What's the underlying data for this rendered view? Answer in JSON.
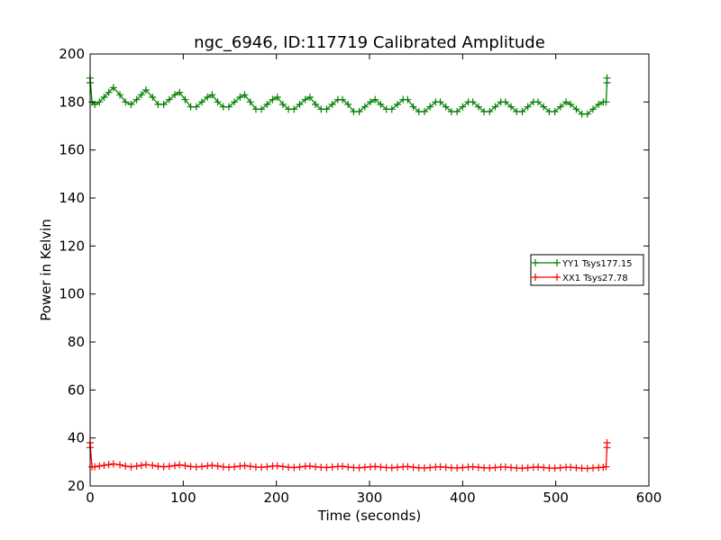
{
  "chart_data": {
    "type": "line",
    "title": "ngc_6946, ID:117719 Calibrated Amplitude",
    "xlabel": "Time (seconds)",
    "ylabel": "Power in Kelvin",
    "xlim": [
      0,
      600
    ],
    "ylim": [
      20,
      200
    ],
    "xticks": [
      0,
      100,
      200,
      300,
      400,
      500,
      600
    ],
    "yticks": [
      20,
      40,
      60,
      80,
      100,
      120,
      140,
      160,
      180,
      200
    ],
    "grid": false,
    "legend_position": "right",
    "marker": "plus",
    "series": [
      {
        "name": "YY1 Tsys177.15",
        "color": "#008000",
        "x": [
          0,
          0,
          2,
          5,
          10,
          15,
          20,
          25,
          32,
          38,
          44,
          50,
          55,
          60,
          67,
          73,
          79,
          85,
          91,
          96,
          102,
          108,
          114,
          120,
          126,
          131,
          137,
          143,
          149,
          155,
          161,
          166,
          172,
          178,
          184,
          190,
          196,
          201,
          207,
          213,
          219,
          225,
          231,
          236,
          242,
          248,
          254,
          260,
          266,
          271,
          277,
          283,
          289,
          295,
          301,
          306,
          312,
          318,
          324,
          330,
          336,
          341,
          347,
          353,
          359,
          365,
          371,
          376,
          382,
          388,
          394,
          400,
          406,
          411,
          417,
          423,
          429,
          435,
          441,
          446,
          452,
          458,
          464,
          470,
          476,
          481,
          487,
          493,
          499,
          505,
          511,
          516,
          522,
          528,
          534,
          540,
          546,
          551,
          554,
          555,
          555
        ],
        "y": [
          188,
          190,
          180,
          179,
          180,
          182,
          184,
          186,
          183,
          180,
          179,
          181,
          183,
          185,
          182,
          179,
          179,
          181,
          183,
          184,
          181,
          178,
          178,
          180,
          182,
          183,
          180,
          178,
          178,
          180,
          182,
          183,
          180,
          177,
          177,
          179,
          181,
          182,
          179,
          177,
          177,
          179,
          181,
          182,
          179,
          177,
          177,
          179,
          181,
          181,
          179,
          176,
          176,
          178,
          180,
          181,
          179,
          177,
          177,
          179,
          181,
          181,
          178,
          176,
          176,
          178,
          180,
          180,
          178,
          176,
          176,
          178,
          180,
          180,
          178,
          176,
          176,
          178,
          180,
          180,
          178,
          176,
          176,
          178,
          180,
          180,
          178,
          176,
          176,
          178,
          180,
          179,
          177,
          175,
          175,
          177,
          179,
          180,
          180,
          188,
          190
        ]
      },
      {
        "name": "XX1 Tsys27.78",
        "color": "#ff0000",
        "x": [
          0,
          0,
          2,
          5,
          10,
          15,
          20,
          25,
          32,
          38,
          44,
          50,
          55,
          60,
          67,
          73,
          79,
          85,
          91,
          96,
          102,
          108,
          114,
          120,
          126,
          131,
          137,
          143,
          149,
          155,
          161,
          166,
          172,
          178,
          184,
          190,
          196,
          201,
          207,
          213,
          219,
          225,
          231,
          236,
          242,
          248,
          254,
          260,
          266,
          271,
          277,
          283,
          289,
          295,
          301,
          306,
          312,
          318,
          324,
          330,
          336,
          341,
          347,
          353,
          359,
          365,
          371,
          376,
          382,
          388,
          394,
          400,
          406,
          411,
          417,
          423,
          429,
          435,
          441,
          446,
          452,
          458,
          464,
          470,
          476,
          481,
          487,
          493,
          499,
          505,
          511,
          516,
          522,
          528,
          534,
          540,
          546,
          551,
          554,
          555,
          555
        ],
        "y": [
          36,
          38,
          28,
          28,
          28.3,
          28.6,
          28.9,
          29.2,
          28.8,
          28.3,
          28,
          28.3,
          28.6,
          28.9,
          28.6,
          28.2,
          28,
          28.2,
          28.5,
          28.8,
          28.5,
          28.1,
          27.9,
          28.1,
          28.4,
          28.6,
          28.3,
          28,
          27.8,
          28,
          28.3,
          28.5,
          28.2,
          27.9,
          27.8,
          28,
          28.3,
          28.4,
          28.1,
          27.8,
          27.7,
          27.9,
          28.2,
          28.3,
          28,
          27.8,
          27.7,
          27.9,
          28.1,
          28.2,
          27.9,
          27.7,
          27.6,
          27.8,
          28,
          28.1,
          27.9,
          27.7,
          27.6,
          27.8,
          28,
          28.1,
          27.8,
          27.6,
          27.5,
          27.7,
          27.9,
          28,
          27.8,
          27.6,
          27.5,
          27.7,
          27.9,
          28,
          27.8,
          27.6,
          27.5,
          27.7,
          27.9,
          27.9,
          27.7,
          27.5,
          27.4,
          27.6,
          27.8,
          27.9,
          27.7,
          27.5,
          27.4,
          27.6,
          27.8,
          27.8,
          27.6,
          27.4,
          27.3,
          27.5,
          27.7,
          27.8,
          28,
          36,
          38
        ]
      }
    ]
  }
}
